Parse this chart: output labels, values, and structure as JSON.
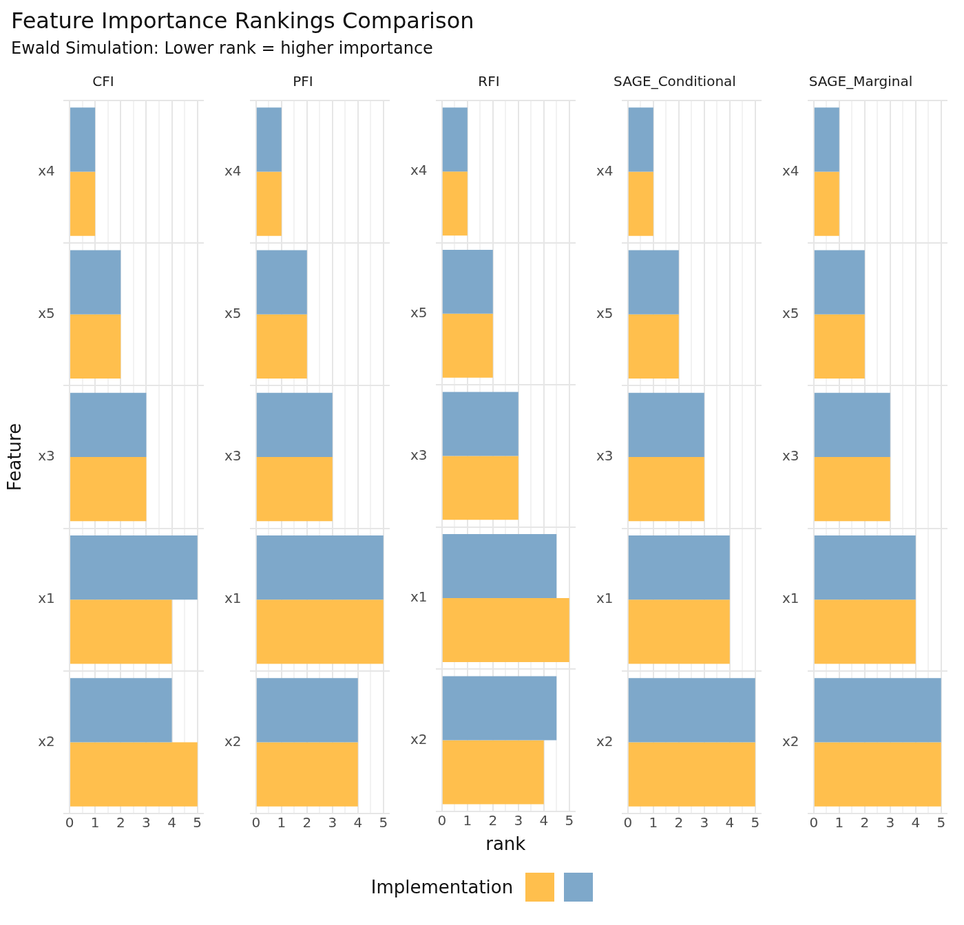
{
  "chart_data": [
    {
      "type": "bar",
      "orientation": "horizontal",
      "title": "CFI",
      "ylabel": "Feature",
      "annotations": [
        "Feature Importance Rankings Comparison",
        "Ewald Simulation: Lower rank = higher importance"
      ],
      "categories": [
        "x4",
        "x5",
        "x3",
        "x1",
        "x2"
      ],
      "xlim": [
        -0.25,
        5.25
      ],
      "xticks": [
        0,
        {
          "value": 0.5,
          "label": null
        },
        1,
        {
          "value": 1.5,
          "label": null
        },
        2,
        {
          "value": 2.5,
          "label": null
        },
        3,
        {
          "value": 3.5,
          "label": null
        },
        4,
        {
          "value": 4.5,
          "label": null
        },
        5
      ],
      "grid": true,
      "series": [
        {
          "color": "#ffbf4d",
          "values": [
            1,
            2,
            3,
            4,
            5
          ]
        },
        {
          "color": "#7ea8ca",
          "values": [
            1,
            2,
            3,
            5,
            4
          ]
        }
      ]
    },
    {
      "type": "bar",
      "orientation": "horizontal",
      "title": "PFI",
      "categories": [
        "x4",
        "x5",
        "x3",
        "x1",
        "x2"
      ],
      "xlim": [
        -0.25,
        5.25
      ],
      "xticks": [
        0,
        {
          "value": 0.5,
          "label": null
        },
        1,
        {
          "value": 1.5,
          "label": null
        },
        2,
        {
          "value": 2.5,
          "label": null
        },
        3,
        {
          "value": 3.5,
          "label": null
        },
        4,
        {
          "value": 4.5,
          "label": null
        },
        5
      ],
      "grid": true,
      "series": [
        {
          "color": "#ffbf4d",
          "values": [
            1,
            2,
            3,
            5,
            4
          ]
        },
        {
          "color": "#7ea8ca",
          "values": [
            1,
            2,
            3,
            5,
            4
          ]
        }
      ]
    },
    {
      "type": "bar",
      "orientation": "horizontal",
      "title": "RFI",
      "xlabel": "rank",
      "legend_title": "Implementation",
      "categories": [
        "x4",
        "x5",
        "x3",
        "x1",
        "x2"
      ],
      "xlim": [
        -0.25,
        5.25
      ],
      "xticks": [
        0,
        {
          "value": 0.5,
          "label": null
        },
        1,
        {
          "value": 1.5,
          "label": null
        },
        2,
        {
          "value": 2.5,
          "label": null
        },
        3,
        {
          "value": 3.5,
          "label": null
        },
        4,
        {
          "value": 4.5,
          "label": null
        },
        5
      ],
      "grid": true,
      "series": [
        {
          "color": "#ffbf4d",
          "values": [
            1,
            2,
            3,
            5,
            4
          ]
        },
        {
          "color": "#7ea8ca",
          "values": [
            1,
            2,
            3,
            4.5,
            4.5
          ]
        }
      ]
    },
    {
      "type": "bar",
      "orientation": "horizontal",
      "title": "SAGE_Conditional",
      "categories": [
        "x4",
        "x5",
        "x3",
        "x1",
        "x2"
      ],
      "xlim": [
        -0.25,
        5.25
      ],
      "xticks": [
        0,
        {
          "value": 0.5,
          "label": null
        },
        1,
        {
          "value": 1.5,
          "label": null
        },
        2,
        {
          "value": 2.5,
          "label": null
        },
        3,
        {
          "value": 3.5,
          "label": null
        },
        4,
        {
          "value": 4.5,
          "label": null
        },
        5
      ],
      "grid": true,
      "series": [
        {
          "color": "#ffbf4d",
          "values": [
            1,
            2,
            3,
            4,
            5
          ]
        },
        {
          "color": "#7ea8ca",
          "values": [
            1,
            2,
            3,
            4,
            5
          ]
        }
      ]
    },
    {
      "type": "bar",
      "orientation": "horizontal",
      "title": "SAGE_Marginal",
      "categories": [
        "x4",
        "x5",
        "x3",
        "x1",
        "x2"
      ],
      "xlim": [
        -0.25,
        5.25
      ],
      "xticks": [
        0,
        {
          "value": 0.5,
          "label": null
        },
        1,
        {
          "value": 1.5,
          "label": null
        },
        2,
        {
          "value": 2.5,
          "label": null
        },
        3,
        {
          "value": 3.5,
          "label": null
        },
        4,
        {
          "value": 4.5,
          "label": null
        },
        5
      ],
      "grid": true,
      "series": [
        {
          "color": "#ffbf4d",
          "values": [
            1,
            2,
            3,
            4,
            5
          ]
        },
        {
          "color": "#7ea8ca",
          "values": [
            1,
            2,
            3,
            4,
            5
          ]
        }
      ]
    }
  ]
}
